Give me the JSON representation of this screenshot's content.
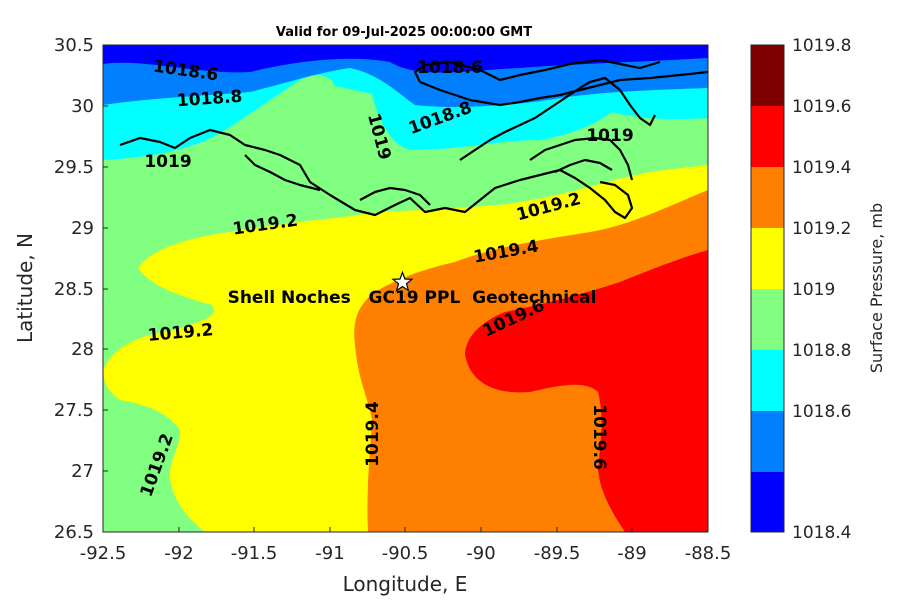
{
  "title": "Valid for 09-Jul-2025 00:00:00 GMT",
  "xlabel": "Longitude, E",
  "ylabel": "Latitude, N",
  "x_ticks": [
    "-92.5",
    "-92",
    "-91.5",
    "-91",
    "-90.5",
    "-90",
    "-89.5",
    "-89",
    "-88.5"
  ],
  "y_ticks": [
    "30.5",
    "30",
    "29.5",
    "29",
    "28.5",
    "28",
    "27.5",
    "27",
    "26.5"
  ],
  "colorbar": {
    "label": "Surface Pressure, mb",
    "ticks": [
      "1019.8",
      "1019.6",
      "1019.4",
      "1019.2",
      "1019",
      "1018.8",
      "1018.6",
      "1018.4"
    ],
    "colors": [
      "#7f0000",
      "#ff0000",
      "#ff8000",
      "#ffff00",
      "#80ff80",
      "#00ffff",
      "#0080ff",
      "#0000ff"
    ]
  },
  "contour_labels": [
    "1018.6",
    "1018.6",
    "1018.8",
    "1018.8",
    "1019",
    "1019",
    "1019",
    "1019.2",
    "1019.2",
    "1019.4",
    "1019.2",
    "1019.2",
    "1019.6",
    "1019.4",
    "1019.6"
  ],
  "annotation": {
    "text": "Shell Noches   GC19 PPL  Geotechnical",
    "marker": "star",
    "lon": -90.52,
    "lat": 28.55
  },
  "levels": {
    "red": "1019.6",
    "orange": "1019.4",
    "yellow": "1019.2",
    "green": "1019",
    "cyan": "1018.8",
    "lightblue": "1018.6",
    "blue": "1018.4"
  },
  "chart_data": {
    "type": "heatmap",
    "title": "Valid for 09-Jul-2025 00:00:00 GMT",
    "xlabel": "Longitude, E",
    "ylabel": "Latitude, N",
    "xlim": [
      -92.5,
      -88.5
    ],
    "ylim": [
      26.5,
      30.5
    ],
    "clim": [
      1018.4,
      1019.8
    ],
    "colorbar_label": "Surface Pressure, mb",
    "contour_levels": [
      1018.6,
      1018.8,
      1019,
      1019.2,
      1019.4,
      1019.6
    ],
    "grid": false
  }
}
